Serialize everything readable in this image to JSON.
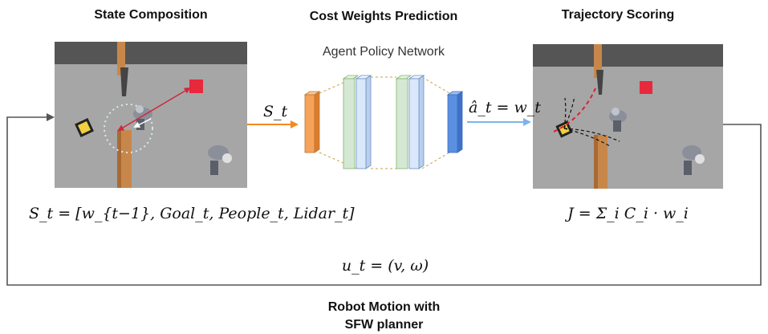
{
  "state_panel": {
    "title": "State Composition",
    "equation": "S_t = [w_{t−1}, Goal_t, People_t, Lidar_t]"
  },
  "network_panel": {
    "title": "Cost Weights Prediction",
    "subtitle": "Agent Policy Network"
  },
  "scoring_panel": {
    "title": "Trajectory Scoring",
    "equation": "J = Σ_i C_i · w_i"
  },
  "arrows": {
    "state_to_net": "S_t",
    "net_to_scoring": "â_t = w_t"
  },
  "loop": {
    "control_label": "u_t = (v, ω)",
    "bottom_line1": "Robot Motion with",
    "bottom_line2": "SFW planner"
  },
  "colors": {
    "arrow_orange": "#f28a1e",
    "arrow_blue": "#7eb4e8",
    "layer_orange": "#f5a35a",
    "layer_green": "#d5e8d4",
    "layer_lightblue": "#dae8fc",
    "layer_blue": "#5b8fe0",
    "goal_red": "#e8283c",
    "floor": "#a6a6a6",
    "wall": "#555555"
  }
}
